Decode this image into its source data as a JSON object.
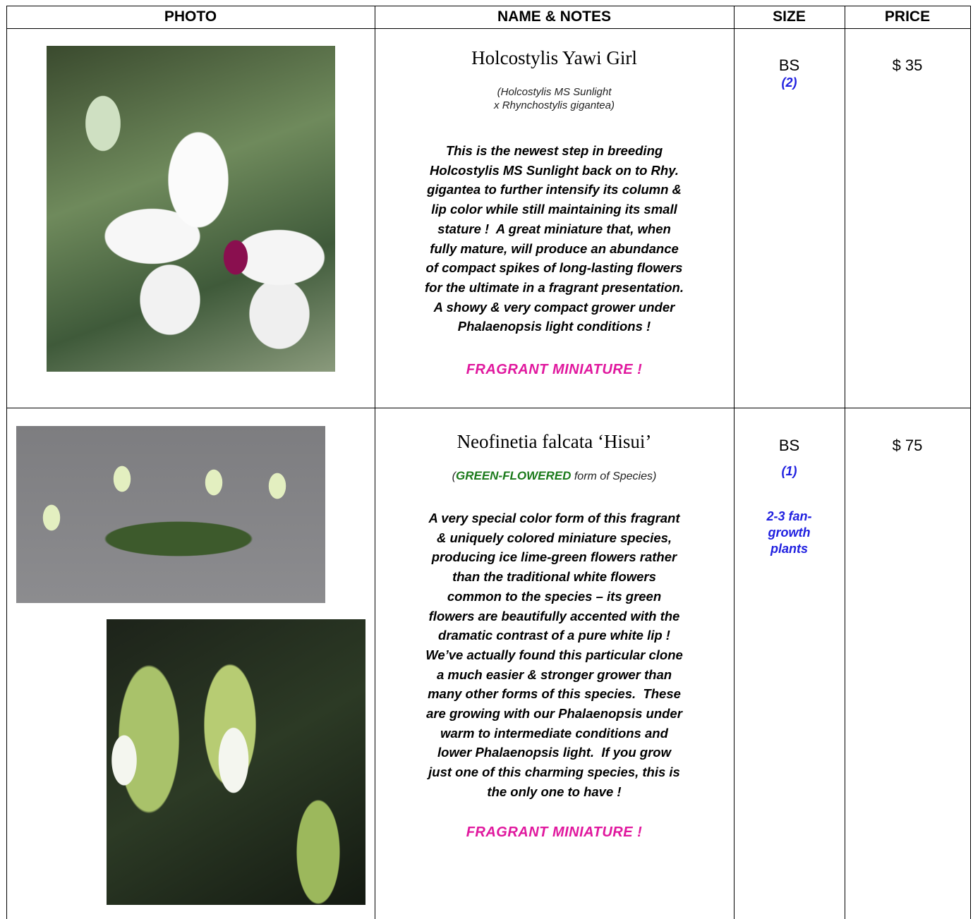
{
  "table": {
    "headers": [
      "PHOTO",
      "NAME & NOTES",
      "SIZE",
      "PRICE"
    ],
    "rows": [
      {
        "name": "Holcostylis Yawi Girl",
        "parentage": [
          "(Holcostylis MS Sunlight",
          "x Rhynchostylis gigantea)"
        ],
        "notes": [
          "This is the newest step in breeding",
          "Holcostylis MS Sunlight back on to Rhy.",
          "gigantea to further intensify its column &",
          "lip color while still maintaining its small",
          "stature !  A great miniature that, when",
          "fully mature, will produce an abundance",
          "of compact spikes of long-lasting flowers",
          "for the ultimate in a fragrant presentation.",
          "A showy & very compact grower under",
          "Phalaenopsis light conditions !"
        ],
        "tag": "FRAGRANT MINIATURE !",
        "size": "BS",
        "quantity": "(2)",
        "price": "$ 35"
      },
      {
        "name": "Neofinetia falcata ‘Hisui’",
        "parentage": {
          "open": "(",
          "highlight": "GREEN-FLOWERED",
          "rest": "form of Species)"
        },
        "notes": [
          "A very special color form of this fragrant",
          "& uniquely colored miniature species,",
          "producing ice lime-green flowers rather",
          "than the traditional white flowers",
          "common to the species – its green",
          "flowers are beautifully accented with the",
          "dramatic contrast of a pure white lip !",
          "We’ve actually found this particular clone",
          "a much easier & stronger grower than",
          "many other forms of this species.  These",
          "are growing with our Phalaenopsis under",
          "warm to intermediate conditions and",
          "lower Phalaenopsis light.  If you grow",
          "just one of this charming species, this is",
          "the only one to have !"
        ],
        "tag": "FRAGRANT MINIATURE !",
        "size": "BS",
        "quantity": "(1)",
        "size_note": "2-3 fan-growth plants",
        "price": "$ 75"
      }
    ]
  }
}
